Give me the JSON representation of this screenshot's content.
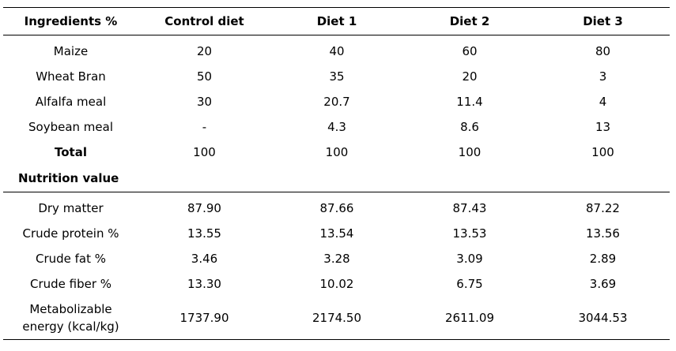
{
  "table": {
    "headers": [
      "Ingredients %",
      "Control diet",
      "Diet 1",
      "Diet 2",
      "Diet 3"
    ],
    "ingredients": [
      {
        "label": "Maize",
        "values": [
          "20",
          "40",
          "60",
          "80"
        ]
      },
      {
        "label": "Wheat Bran",
        "values": [
          "50",
          "35",
          "20",
          "3"
        ]
      },
      {
        "label": "Alfalfa meal",
        "values": [
          "30",
          "20.7",
          "11.4",
          "4"
        ]
      },
      {
        "label": "Soybean meal",
        "values": [
          "-",
          "4.3",
          "8.6",
          "13"
        ]
      }
    ],
    "total": {
      "label": "Total",
      "values": [
        "100",
        "100",
        "100",
        "100"
      ]
    },
    "section_label": "Nutrition value",
    "nutrition": [
      {
        "label": "Dry matter",
        "values": [
          "87.90",
          "87.66",
          "87.43",
          "87.22"
        ]
      },
      {
        "label": "Crude protein %",
        "values": [
          "13.55",
          "13.54",
          "13.53",
          "13.56"
        ]
      },
      {
        "label": "Crude fat %",
        "values": [
          "3.46",
          "3.28",
          "3.09",
          "2.89"
        ]
      },
      {
        "label": "Crude fiber %",
        "values": [
          "13.30",
          "10.02",
          "6.75",
          "3.69"
        ]
      },
      {
        "label_line1": "Metabolizable",
        "label_line2": "energy (kcal/kg)",
        "values": [
          "1737.90",
          "2174.50",
          "2611.09",
          "3044.53"
        ]
      }
    ]
  }
}
